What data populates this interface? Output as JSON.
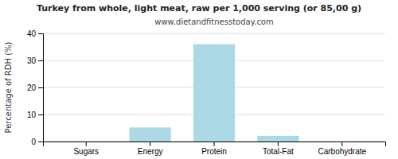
{
  "chart_data": {
    "type": "bar",
    "title": "Turkey from whole, light meat, raw per 1,000 serving (or 85,00 g)",
    "subtitle": "www.dietandfitnesstoday.com",
    "ylabel": "Percentage of RDH (%)",
    "categories": [
      "Sugars",
      "Energy",
      "Protein",
      "Total-Fat",
      "Carbohydrate"
    ],
    "values": [
      0.0,
      5.2,
      36.0,
      2.1,
      0.0
    ],
    "color": "#add8e6",
    "ylim": [
      0,
      40
    ],
    "yticks": [
      0,
      10,
      20,
      30,
      40
    ],
    "grid": true
  }
}
